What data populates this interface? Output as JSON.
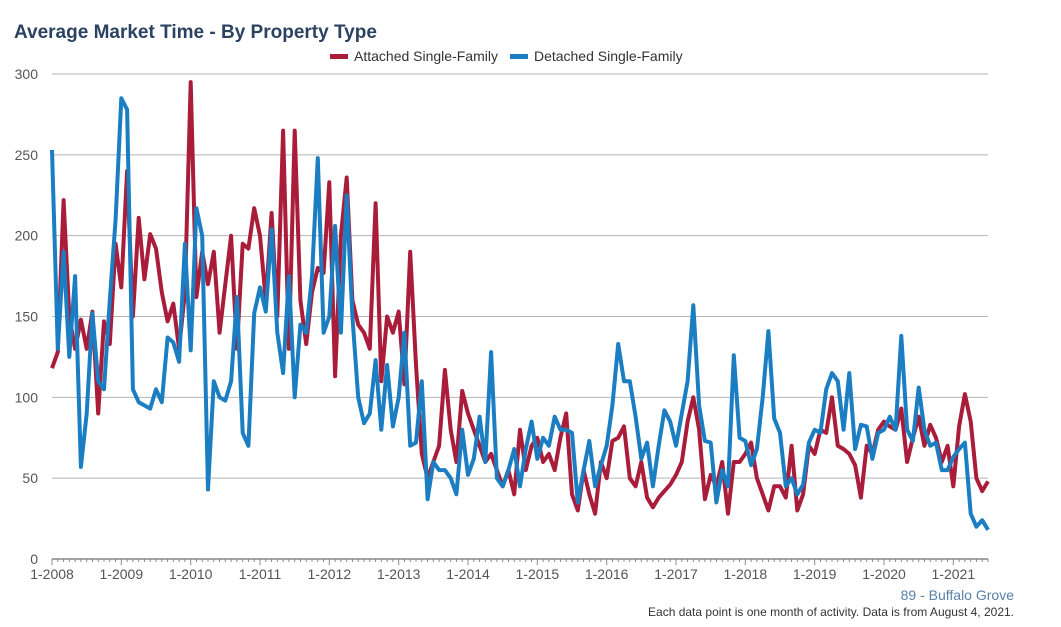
{
  "chart_data": {
    "type": "line",
    "title": "Average Market Time - By Property Type",
    "xlabel": "",
    "ylabel": "",
    "x_start": "1-2008",
    "x_end": "7-2021",
    "frequency": "monthly",
    "x_tick_labels": [
      "1-2008",
      "1-2009",
      "1-2010",
      "1-2011",
      "1-2012",
      "1-2013",
      "1-2014",
      "1-2015",
      "1-2016",
      "1-2017",
      "1-2018",
      "1-2019",
      "1-2020",
      "1-2021"
    ],
    "ylim": [
      0,
      300
    ],
    "y_ticks": [
      0,
      50,
      100,
      150,
      200,
      250,
      300
    ],
    "grid": true,
    "legend_position": "top-center",
    "series": [
      {
        "name": "Attached Single-Family",
        "color": "#a91c3a",
        "values": [
          118,
          128,
          222,
          150,
          130,
          148,
          130,
          153,
          90,
          147,
          133,
          195,
          168,
          240,
          150,
          211,
          173,
          201,
          192,
          165,
          147,
          158,
          130,
          165,
          295,
          162,
          190,
          170,
          190,
          140,
          170,
          200,
          130,
          195,
          192,
          217,
          200,
          160,
          214,
          150,
          265,
          130,
          265,
          160,
          133,
          165,
          180,
          177,
          233,
          113,
          200,
          236,
          160,
          145,
          140,
          130,
          220,
          110,
          150,
          140,
          153,
          108,
          190,
          120,
          65,
          50,
          60,
          70,
          117,
          80,
          60,
          104,
          90,
          80,
          70,
          60,
          65,
          55,
          45,
          55,
          40,
          80,
          55,
          70,
          75,
          60,
          65,
          55,
          75,
          90,
          40,
          30,
          55,
          40,
          28,
          60,
          50,
          73,
          75,
          82,
          50,
          45,
          60,
          38,
          32,
          38,
          42,
          46,
          52,
          60,
          85,
          100,
          80,
          37,
          52,
          45,
          60,
          28,
          60,
          60,
          65,
          72,
          50,
          40,
          30,
          45,
          45,
          38,
          70,
          30,
          40,
          70,
          65,
          80,
          78,
          100,
          70,
          68,
          65,
          58,
          38,
          70,
          65,
          80,
          85,
          82,
          80,
          93,
          60,
          75,
          88,
          70,
          83,
          75,
          60,
          70,
          45,
          82,
          102,
          85,
          50,
          42,
          48
        ]
      },
      {
        "name": "Detached Single-Family",
        "color": "#1b7ec2",
        "values": [
          253,
          130,
          190,
          125,
          175,
          57,
          90,
          152,
          110,
          105,
          160,
          210,
          285,
          278,
          105,
          97,
          95,
          93,
          105,
          97,
          137,
          134,
          122,
          195,
          129,
          217,
          200,
          43,
          110,
          100,
          98,
          110,
          162,
          78,
          70,
          152,
          168,
          153,
          204,
          140,
          115,
          175,
          100,
          145,
          140,
          175,
          248,
          140,
          150,
          206,
          140,
          225,
          150,
          100,
          84,
          90,
          123,
          80,
          120,
          82,
          100,
          140,
          70,
          72,
          110,
          37,
          60,
          55,
          55,
          50,
          40,
          80,
          52,
          62,
          88,
          60,
          128,
          50,
          45,
          55,
          68,
          45,
          68,
          85,
          62,
          75,
          70,
          88,
          80,
          80,
          78,
          35,
          55,
          73,
          45,
          58,
          70,
          95,
          133,
          110,
          110,
          88,
          62,
          72,
          45,
          70,
          92,
          85,
          70,
          90,
          110,
          157,
          95,
          73,
          72,
          35,
          55,
          45,
          126,
          75,
          73,
          58,
          68,
          100,
          141,
          87,
          78,
          45,
          50,
          40,
          46,
          72,
          80,
          78,
          105,
          115,
          110,
          80,
          115,
          68,
          83,
          82,
          62,
          78,
          80,
          88,
          80,
          138,
          80,
          73,
          106,
          80,
          70,
          72,
          55,
          55,
          63,
          68,
          72,
          28,
          20,
          24,
          18
        ]
      }
    ]
  },
  "footer": {
    "area": "89 - Buffalo Grove",
    "note": "Each data point is one month of activity. Data is from August 4, 2021."
  }
}
